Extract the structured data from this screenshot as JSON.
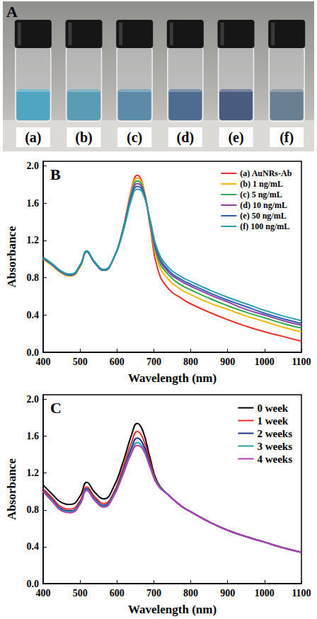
{
  "photo": {
    "label": "A",
    "vials": [
      "(a)",
      "(b)",
      "(c)",
      "(d)",
      "(e)",
      "(f)"
    ]
  },
  "chart_data": [
    {
      "type": "line",
      "title": "B",
      "x_label": "Wavelength (nm)",
      "y_label": "Absorbance",
      "x": [
        400,
        425,
        450,
        475,
        500,
        518,
        540,
        565,
        590,
        615,
        640,
        655,
        670,
        690,
        710,
        740,
        775,
        800,
        850,
        900,
        950,
        1000,
        1050,
        1100
      ],
      "series": [
        {
          "name": "(a) AuNRs-Ab",
          "color": "#e8312f",
          "values": [
            1.0,
            0.93,
            0.85,
            0.82,
            0.92,
            1.08,
            0.96,
            0.88,
            1.0,
            1.3,
            1.76,
            1.9,
            1.8,
            1.35,
            0.9,
            0.68,
            0.58,
            0.52,
            0.43,
            0.35,
            0.28,
            0.22,
            0.17,
            0.12
          ]
        },
        {
          "name": "(b) 1 ng/mL",
          "color": "#f2b705",
          "values": [
            1.0,
            0.93,
            0.85,
            0.82,
            0.92,
            1.08,
            0.96,
            0.88,
            1.0,
            1.3,
            1.74,
            1.87,
            1.79,
            1.38,
            0.98,
            0.78,
            0.67,
            0.62,
            0.53,
            0.46,
            0.39,
            0.33,
            0.27,
            0.22
          ]
        },
        {
          "name": "(c) 5 ng/mL",
          "color": "#2eab4f",
          "values": [
            1.01,
            0.94,
            0.86,
            0.83,
            0.93,
            1.08,
            0.96,
            0.88,
            1.0,
            1.3,
            1.72,
            1.84,
            1.77,
            1.39,
            1.02,
            0.83,
            0.72,
            0.67,
            0.58,
            0.5,
            0.43,
            0.37,
            0.31,
            0.26
          ]
        },
        {
          "name": "(d) 10 ng/mL",
          "color": "#8e3fa0",
          "values": [
            1.01,
            0.94,
            0.86,
            0.83,
            0.93,
            1.08,
            0.96,
            0.88,
            1.0,
            1.29,
            1.7,
            1.81,
            1.75,
            1.4,
            1.05,
            0.86,
            0.76,
            0.71,
            0.62,
            0.54,
            0.46,
            0.4,
            0.34,
            0.29
          ]
        },
        {
          "name": "(e) 50 ng/mL",
          "color": "#2f5fb3",
          "values": [
            1.01,
            0.94,
            0.86,
            0.83,
            0.93,
            1.08,
            0.96,
            0.88,
            1.0,
            1.28,
            1.68,
            1.78,
            1.73,
            1.41,
            1.07,
            0.88,
            0.78,
            0.73,
            0.64,
            0.56,
            0.49,
            0.42,
            0.36,
            0.31
          ]
        },
        {
          "name": "(f) 100 ng/mL",
          "color": "#2a9fa8",
          "values": [
            1.02,
            0.95,
            0.87,
            0.84,
            0.94,
            1.09,
            0.97,
            0.89,
            1.0,
            1.27,
            1.65,
            1.75,
            1.71,
            1.42,
            1.1,
            0.91,
            0.81,
            0.76,
            0.67,
            0.59,
            0.52,
            0.45,
            0.39,
            0.34
          ]
        }
      ],
      "xlim": [
        400,
        1100
      ],
      "xticks": [
        400,
        500,
        600,
        700,
        800,
        900,
        1000,
        1100
      ],
      "ylim": [
        0,
        2.05
      ],
      "yticks": [
        {
          "value": 0,
          "label": "0.0"
        },
        {
          "value": 0.4,
          "label": "0.4"
        },
        {
          "value": 0.8,
          "label": "0.8"
        },
        {
          "value": 1.2,
          "label": "1.2"
        },
        {
          "value": 1.6,
          "label": "1.6"
        },
        {
          "value": 2.0,
          "label": "2.0"
        }
      ],
      "legend": "upper right",
      "grid": false
    },
    {
      "type": "line",
      "title": "C",
      "x_label": "Wavelength (nm)",
      "y_label": "Absorbance",
      "x": [
        400,
        425,
        450,
        475,
        500,
        518,
        540,
        565,
        590,
        615,
        640,
        655,
        670,
        690,
        710,
        740,
        775,
        800,
        850,
        900,
        950,
        1000,
        1050,
        1100
      ],
      "series": [
        {
          "name": "0 week",
          "color": "#000000",
          "values": [
            1.07,
            0.97,
            0.88,
            0.86,
            0.95,
            1.1,
            0.99,
            0.92,
            1.04,
            1.3,
            1.62,
            1.74,
            1.66,
            1.36,
            1.1,
            0.96,
            0.84,
            0.78,
            0.67,
            0.58,
            0.51,
            0.45,
            0.39,
            0.34
          ]
        },
        {
          "name": "1 week",
          "color": "#ee2a2a",
          "values": [
            1.03,
            0.93,
            0.83,
            0.81,
            0.9,
            1.05,
            0.94,
            0.87,
            0.98,
            1.24,
            1.54,
            1.65,
            1.58,
            1.32,
            1.09,
            0.96,
            0.84,
            0.78,
            0.67,
            0.58,
            0.51,
            0.45,
            0.39,
            0.34
          ]
        },
        {
          "name": "2 weeks",
          "color": "#1c2f8c",
          "values": [
            1.01,
            0.91,
            0.81,
            0.79,
            0.88,
            1.03,
            0.92,
            0.85,
            0.96,
            1.2,
            1.48,
            1.58,
            1.52,
            1.29,
            1.08,
            0.96,
            0.84,
            0.78,
            0.67,
            0.58,
            0.51,
            0.45,
            0.39,
            0.34
          ]
        },
        {
          "name": "3 weeks",
          "color": "#2a9fa8",
          "values": [
            1.0,
            0.9,
            0.8,
            0.78,
            0.87,
            1.02,
            0.91,
            0.84,
            0.95,
            1.18,
            1.44,
            1.53,
            1.48,
            1.27,
            1.08,
            0.96,
            0.84,
            0.78,
            0.67,
            0.58,
            0.51,
            0.45,
            0.39,
            0.34
          ]
        },
        {
          "name": "4 weeks",
          "color": "#b33db3",
          "values": [
            1.0,
            0.89,
            0.79,
            0.77,
            0.86,
            1.01,
            0.9,
            0.83,
            0.94,
            1.17,
            1.42,
            1.5,
            1.46,
            1.26,
            1.07,
            0.96,
            0.84,
            0.78,
            0.67,
            0.58,
            0.51,
            0.45,
            0.39,
            0.34
          ]
        }
      ],
      "xlim": [
        400,
        1100
      ],
      "xticks": [
        400,
        500,
        600,
        700,
        800,
        900,
        1000,
        1100
      ],
      "ylim": [
        0,
        2.05
      ],
      "yticks": [
        {
          "value": 0,
          "label": "0.0"
        },
        {
          "value": 0.4,
          "label": "0.4"
        },
        {
          "value": 0.8,
          "label": "0.8"
        },
        {
          "value": 1.2,
          "label": "1.2"
        },
        {
          "value": 1.6,
          "label": "1.6"
        },
        {
          "value": 2.0,
          "label": "2.0"
        }
      ],
      "legend": "upper right",
      "grid": false
    }
  ]
}
